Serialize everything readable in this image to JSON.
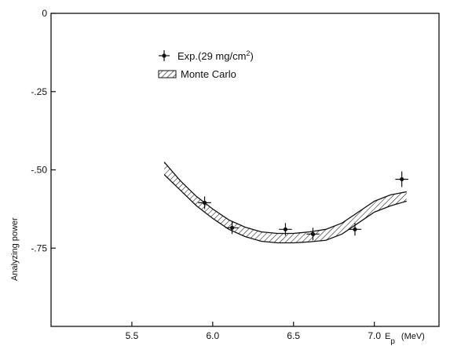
{
  "chart_data": {
    "type": "scatter",
    "title": "",
    "xlabel": "Ep",
    "xlabel_sub": "p",
    "xlabel_unit": "(MeV)",
    "ylabel": "Analyzing power",
    "xlim": [
      5.0,
      7.4
    ],
    "ylim": [
      -1.0,
      0.0
    ],
    "x_ticks": [
      5.5,
      6.0,
      6.5,
      7.0
    ],
    "x_tick_labels": [
      "5.5",
      "6.0",
      "6.5",
      "7.0"
    ],
    "y_ticks": [
      0.0,
      -0.25,
      -0.5,
      -0.75
    ],
    "y_tick_labels": [
      "0",
      "-.25",
      "-.50",
      "-.75"
    ],
    "grid": false,
    "legend_position": "top-left",
    "legend": {
      "exp_label": "Exp.(29 mg/cm",
      "exp_sup": "2",
      "exp_close": ")",
      "mc_label": "Monte Carlo"
    },
    "series": [
      {
        "name": "Exp.(29 mg/cm2)",
        "kind": "points",
        "x": [
          5.95,
          6.12,
          6.45,
          6.62,
          6.88,
          7.17
        ],
        "y": [
          -0.605,
          -0.685,
          -0.69,
          -0.705,
          -0.69,
          -0.53
        ],
        "xerr": [
          0.04,
          0.04,
          0.04,
          0.04,
          0.04,
          0.04
        ],
        "yerr": [
          0.02,
          0.02,
          0.02,
          0.02,
          0.02,
          0.025
        ]
      },
      {
        "name": "Monte Carlo",
        "kind": "band",
        "x": [
          5.7,
          5.8,
          5.9,
          6.0,
          6.1,
          6.2,
          6.3,
          6.4,
          6.5,
          6.6,
          6.7,
          6.8,
          6.9,
          7.0,
          7.1,
          7.2
        ],
        "upper": [
          -0.475,
          -0.535,
          -0.585,
          -0.625,
          -0.66,
          -0.683,
          -0.698,
          -0.703,
          -0.703,
          -0.698,
          -0.69,
          -0.67,
          -0.635,
          -0.6,
          -0.58,
          -0.57
        ],
        "lower": [
          -0.515,
          -0.565,
          -0.615,
          -0.655,
          -0.69,
          -0.713,
          -0.728,
          -0.733,
          -0.733,
          -0.73,
          -0.725,
          -0.705,
          -0.67,
          -0.635,
          -0.615,
          -0.6
        ]
      }
    ]
  }
}
